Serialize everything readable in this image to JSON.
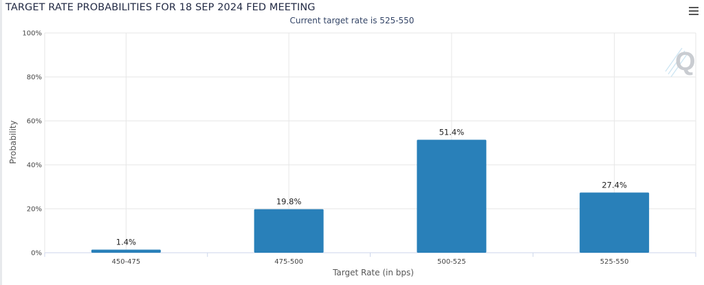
{
  "chart_data": {
    "type": "bar",
    "title": "TARGET RATE PROBABILITIES FOR 18 SEP 2024 FED MEETING",
    "subtitle": "Current target rate is 525-550",
    "xlabel": "Target Rate (in bps)",
    "ylabel": "Probability",
    "categories": [
      "450-475",
      "475-500",
      "500-525",
      "525-550"
    ],
    "values": [
      1.4,
      19.8,
      51.4,
      27.4
    ],
    "data_labels": [
      "1.4%",
      "19.8%",
      "51.4%",
      "27.4%"
    ],
    "ylim": [
      0,
      100
    ],
    "yticks": [
      "0%",
      "20%",
      "40%",
      "60%",
      "80%",
      "100%"
    ],
    "grid": true,
    "bar_color": "#2980b9"
  },
  "toolbar": {
    "menu_icon": "hamburger-menu-icon"
  },
  "watermark": {
    "icon": "quikstrike-q-logo-icon"
  }
}
